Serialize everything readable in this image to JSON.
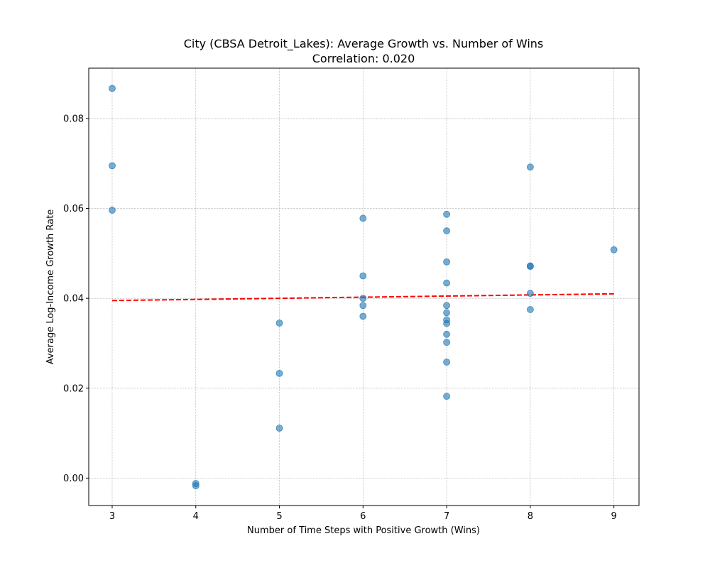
{
  "chart_data": {
    "type": "scatter",
    "title": "City (CBSA Detroit_Lakes): Average Growth vs. Number of Wins",
    "subtitle": "Correlation: 0.020",
    "xlabel": "Number of Time Steps with Positive Growth (Wins)",
    "ylabel": "Average Log-Income Growth Rate",
    "xlim": [
      2.72,
      9.3
    ],
    "ylim": [
      -0.0061,
      0.0912
    ],
    "xticks": [
      3,
      4,
      5,
      6,
      7,
      8,
      9
    ],
    "yticks": [
      0.0,
      0.02,
      0.04,
      0.06,
      0.08
    ],
    "ytick_labels": [
      "0.00",
      "0.02",
      "0.04",
      "0.06",
      "0.08"
    ],
    "grid": true,
    "point_color": "#1f77b4",
    "trend_color": "#ff0000",
    "points": [
      {
        "x": 3,
        "y": 0.0867
      },
      {
        "x": 3,
        "y": 0.0695
      },
      {
        "x": 3,
        "y": 0.0596
      },
      {
        "x": 4,
        "y": -0.0012
      },
      {
        "x": 4,
        "y": -0.0017
      },
      {
        "x": 5,
        "y": 0.0345
      },
      {
        "x": 5,
        "y": 0.0233
      },
      {
        "x": 5,
        "y": 0.0111
      },
      {
        "x": 6,
        "y": 0.0578
      },
      {
        "x": 6,
        "y": 0.045
      },
      {
        "x": 6,
        "y": 0.04
      },
      {
        "x": 6,
        "y": 0.0384
      },
      {
        "x": 6,
        "y": 0.036
      },
      {
        "x": 7,
        "y": 0.0587
      },
      {
        "x": 7,
        "y": 0.055
      },
      {
        "x": 7,
        "y": 0.0481
      },
      {
        "x": 7,
        "y": 0.0434
      },
      {
        "x": 7,
        "y": 0.0384
      },
      {
        "x": 7,
        "y": 0.0368
      },
      {
        "x": 7,
        "y": 0.0352
      },
      {
        "x": 7,
        "y": 0.0344
      },
      {
        "x": 7,
        "y": 0.032
      },
      {
        "x": 7,
        "y": 0.0302
      },
      {
        "x": 7,
        "y": 0.0258
      },
      {
        "x": 7,
        "y": 0.0182
      },
      {
        "x": 8,
        "y": 0.0692
      },
      {
        "x": 8,
        "y": 0.0472
      },
      {
        "x": 8,
        "y": 0.0471
      },
      {
        "x": 8,
        "y": 0.0411
      },
      {
        "x": 8,
        "y": 0.0375
      },
      {
        "x": 9,
        "y": 0.0508
      }
    ],
    "trend_line": {
      "x": [
        3,
        9
      ],
      "y": [
        0.0395,
        0.041
      ]
    }
  }
}
